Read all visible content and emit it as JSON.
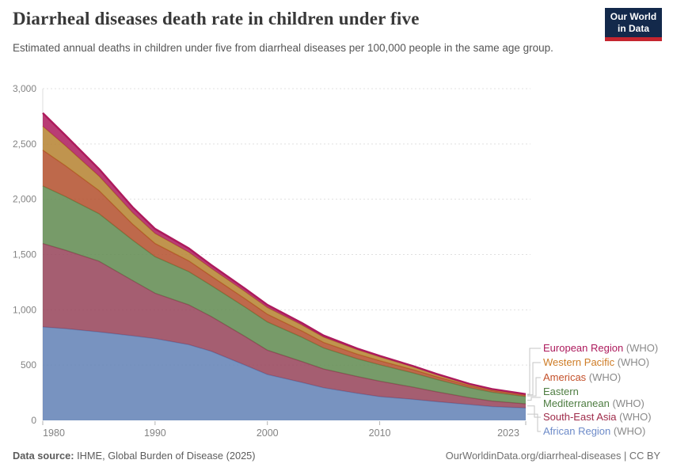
{
  "header": {
    "title": "Diarrheal diseases death rate in children under five",
    "subtitle": "Estimated annual deaths in children under five from diarrheal diseases per 100,000 people in the same age group.",
    "logo_line1": "Our World",
    "logo_line2": "in Data"
  },
  "footer": {
    "source_label": "Data source:",
    "source_value": " IHME, Global Burden of Disease (2025)",
    "credit": "OurWorldinData.org/diarrheal-diseases | CC BY"
  },
  "chart_data": {
    "type": "area",
    "stacked": true,
    "title": "Diarrheal diseases death rate in children under five",
    "ylabel": "",
    "xlabel": "",
    "ylim": [
      0,
      3000
    ],
    "yticks": [
      0,
      500,
      1000,
      1500,
      2000,
      2500,
      3000
    ],
    "x_range": [
      1980,
      2023
    ],
    "xticks": [
      1980,
      1990,
      2000,
      2010,
      2023
    ],
    "legend_suffix": "(WHO)",
    "grid": "dashed-horizontal",
    "legend_position": "right",
    "years": [
      1980,
      1982,
      1985,
      1988,
      1990,
      1993,
      1995,
      1998,
      2000,
      2003,
      2005,
      2008,
      2010,
      2013,
      2015,
      2018,
      2020,
      2023
    ],
    "series": [
      {
        "name": "African Region",
        "color": "#6080b5",
        "text_color": "#6d8bc9",
        "values": [
          845,
          830,
          800,
          765,
          740,
          685,
          625,
          500,
          415,
          345,
          295,
          245,
          215,
          190,
          170,
          143,
          125,
          112
        ]
      },
      {
        "name": "South-East Asia",
        "color": "#954258",
        "text_color": "#9e2a49",
        "values": [
          755,
          710,
          640,
          500,
          410,
          360,
          315,
          260,
          220,
          190,
          170,
          152,
          140,
          110,
          90,
          62,
          50,
          38
        ]
      },
      {
        "name": "Eastern Mediterranean",
        "color": "#5f8a4f",
        "text_color": "#4e7d41",
        "values": [
          520,
          485,
          430,
          365,
          330,
          300,
          280,
          265,
          255,
          220,
          190,
          160,
          148,
          128,
          112,
          90,
          80,
          65
        ]
      },
      {
        "name": "Americas",
        "color": "#b34f2c",
        "text_color": "#c4512b",
        "values": [
          325,
          280,
          210,
          145,
          120,
          98,
          85,
          76,
          70,
          58,
          50,
          42,
          37,
          30,
          25,
          18,
          15,
          12
        ]
      },
      {
        "name": "Western Pacific",
        "color": "#b5812f",
        "text_color": "#ce7c26",
        "values": [
          215,
          180,
          130,
          103,
          90,
          78,
          70,
          64,
          60,
          53,
          48,
          40,
          35,
          26,
          20,
          13,
          10,
          8
        ]
      },
      {
        "name": "European Region",
        "color": "#ad1a5c",
        "text_color": "#ad1a5c",
        "values": [
          120,
          95,
          65,
          50,
          42,
          35,
          30,
          27,
          25,
          19,
          15,
          11,
          8,
          6.5,
          5,
          3.8,
          3.5,
          3
        ]
      }
    ]
  }
}
